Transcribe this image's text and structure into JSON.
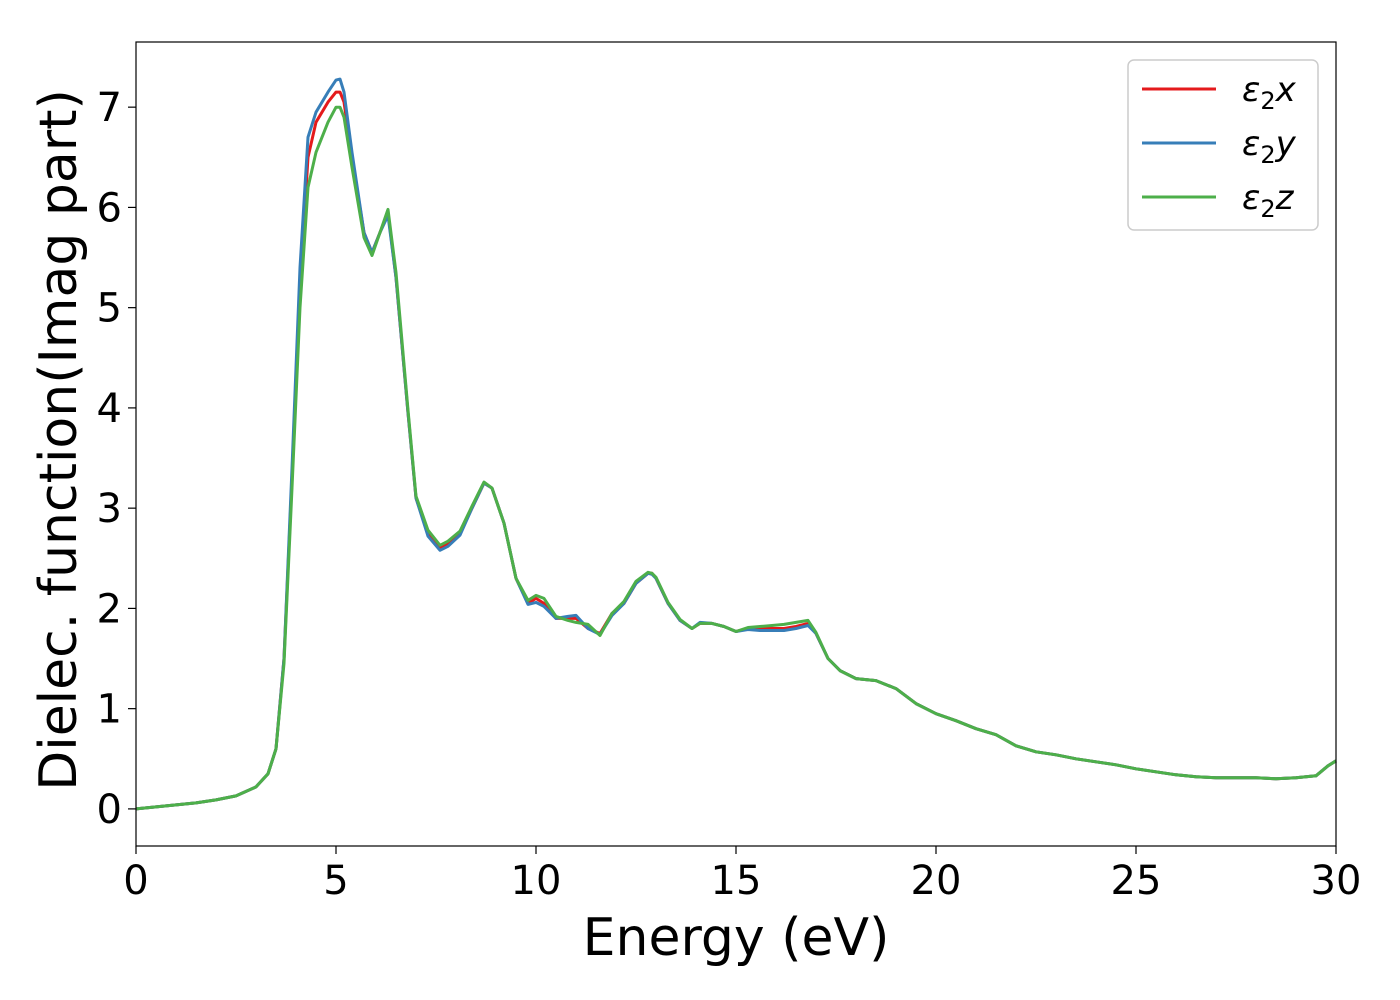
{
  "chart_data": {
    "type": "line",
    "xlabel": "Energy (eV)",
    "ylabel": "Dielec. function(Imag part)",
    "xlim": [
      0,
      30
    ],
    "ylim": [
      -0.37,
      7.65
    ],
    "xticks": [
      0,
      5,
      10,
      15,
      20,
      25,
      30
    ],
    "yticks": [
      0,
      1,
      2,
      3,
      4,
      5,
      6,
      7
    ],
    "grid": false,
    "legend_position": "top-right",
    "series": [
      {
        "name": "ε2x",
        "legend": {
          "sym": "ε",
          "sub": "2",
          "var": "x"
        },
        "color": "#e41a1c",
        "x": [
          0,
          0.5,
          1,
          1.5,
          2,
          2.5,
          3,
          3.3,
          3.5,
          3.7,
          3.9,
          4.1,
          4.3,
          4.5,
          4.8,
          5.0,
          5.1,
          5.2,
          5.4,
          5.7,
          5.9,
          6.1,
          6.3,
          6.5,
          6.8,
          7.0,
          7.3,
          7.6,
          7.8,
          8.1,
          8.4,
          8.7,
          8.9,
          9.2,
          9.5,
          9.8,
          10.0,
          10.2,
          10.5,
          10.8,
          11.0,
          11.3,
          11.6,
          11.9,
          12.2,
          12.5,
          12.8,
          12.9,
          13.0,
          13.3,
          13.6,
          13.9,
          14.1,
          14.4,
          14.7,
          15.0,
          15.3,
          15.6,
          15.9,
          16.2,
          16.5,
          16.8,
          17.0,
          17.3,
          17.6,
          18.0,
          18.5,
          19.0,
          19.5,
          20.0,
          20.5,
          21.0,
          21.5,
          22.0,
          22.5,
          23.0,
          23.5,
          24.0,
          24.5,
          25.0,
          25.5,
          26.0,
          26.5,
          27.0,
          27.5,
          28.0,
          28.5,
          29.0,
          29.5,
          29.8,
          30.0
        ],
        "y": [
          0,
          0.02,
          0.04,
          0.06,
          0.09,
          0.13,
          0.22,
          0.35,
          0.6,
          1.5,
          3.3,
          5.2,
          6.5,
          6.85,
          7.05,
          7.15,
          7.15,
          7.05,
          6.5,
          5.75,
          5.55,
          5.75,
          5.95,
          5.3,
          3.95,
          3.1,
          2.75,
          2.6,
          2.65,
          2.75,
          3.0,
          3.25,
          3.2,
          2.85,
          2.3,
          2.05,
          2.1,
          2.05,
          1.9,
          1.9,
          1.9,
          1.8,
          1.75,
          1.95,
          2.05,
          2.25,
          2.35,
          2.35,
          2.3,
          2.05,
          1.88,
          1.8,
          1.85,
          1.85,
          1.82,
          1.77,
          1.8,
          1.8,
          1.8,
          1.8,
          1.82,
          1.85,
          1.75,
          1.5,
          1.38,
          1.3,
          1.28,
          1.2,
          1.05,
          0.95,
          0.88,
          0.8,
          0.74,
          0.63,
          0.57,
          0.54,
          0.5,
          0.47,
          0.44,
          0.4,
          0.37,
          0.34,
          0.32,
          0.31,
          0.31,
          0.31,
          0.3,
          0.31,
          0.33,
          0.43,
          0.48
        ]
      },
      {
        "name": "ε2y",
        "legend": {
          "sym": "ε",
          "sub": "2",
          "var": "y"
        },
        "color": "#377eb8",
        "x": [
          0,
          0.5,
          1,
          1.5,
          2,
          2.5,
          3,
          3.3,
          3.5,
          3.7,
          3.9,
          4.1,
          4.3,
          4.5,
          4.8,
          5.0,
          5.1,
          5.2,
          5.4,
          5.7,
          5.9,
          6.1,
          6.3,
          6.5,
          6.8,
          7.0,
          7.3,
          7.6,
          7.8,
          8.1,
          8.4,
          8.7,
          8.9,
          9.2,
          9.5,
          9.8,
          10.0,
          10.2,
          10.5,
          10.8,
          11.0,
          11.3,
          11.6,
          11.9,
          12.2,
          12.5,
          12.8,
          12.9,
          13.0,
          13.3,
          13.6,
          13.9,
          14.1,
          14.4,
          14.7,
          15.0,
          15.3,
          15.6,
          15.9,
          16.2,
          16.5,
          16.8,
          17.0,
          17.3,
          17.6,
          18.0,
          18.5,
          19.0,
          19.5,
          20.0,
          20.5,
          21.0,
          21.5,
          22.0,
          22.5,
          23.0,
          23.5,
          24.0,
          24.5,
          25.0,
          25.5,
          26.0,
          26.5,
          27.0,
          27.5,
          28.0,
          28.5,
          29.0,
          29.5,
          29.8,
          30.0
        ],
        "y": [
          0,
          0.02,
          0.04,
          0.06,
          0.09,
          0.13,
          0.22,
          0.35,
          0.6,
          1.5,
          3.4,
          5.4,
          6.7,
          6.95,
          7.15,
          7.27,
          7.28,
          7.15,
          6.55,
          5.75,
          5.55,
          5.75,
          5.92,
          5.3,
          3.95,
          3.1,
          2.72,
          2.58,
          2.62,
          2.73,
          3.0,
          3.25,
          3.2,
          2.85,
          2.3,
          2.04,
          2.06,
          2.02,
          1.9,
          1.92,
          1.93,
          1.8,
          1.74,
          1.93,
          2.05,
          2.25,
          2.35,
          2.34,
          2.3,
          2.05,
          1.88,
          1.8,
          1.86,
          1.85,
          1.82,
          1.77,
          1.79,
          1.78,
          1.78,
          1.78,
          1.8,
          1.83,
          1.75,
          1.5,
          1.38,
          1.3,
          1.28,
          1.2,
          1.05,
          0.95,
          0.88,
          0.8,
          0.74,
          0.63,
          0.57,
          0.54,
          0.5,
          0.47,
          0.44,
          0.4,
          0.37,
          0.34,
          0.32,
          0.31,
          0.31,
          0.31,
          0.3,
          0.31,
          0.33,
          0.43,
          0.48
        ]
      },
      {
        "name": "ε2z",
        "legend": {
          "sym": "ε",
          "sub": "2",
          "var": "z"
        },
        "color": "#4daf4a",
        "x": [
          0,
          0.5,
          1,
          1.5,
          2,
          2.5,
          3,
          3.3,
          3.5,
          3.7,
          3.9,
          4.1,
          4.3,
          4.5,
          4.8,
          5.0,
          5.1,
          5.2,
          5.4,
          5.7,
          5.9,
          6.1,
          6.3,
          6.5,
          6.8,
          7.0,
          7.3,
          7.6,
          7.8,
          8.1,
          8.4,
          8.7,
          8.9,
          9.2,
          9.5,
          9.8,
          10.0,
          10.2,
          10.5,
          10.8,
          11.0,
          11.3,
          11.6,
          11.9,
          12.2,
          12.5,
          12.8,
          12.9,
          13.0,
          13.3,
          13.6,
          13.9,
          14.1,
          14.4,
          14.7,
          15.0,
          15.3,
          15.6,
          15.9,
          16.2,
          16.5,
          16.8,
          17.0,
          17.3,
          17.6,
          18.0,
          18.5,
          19.0,
          19.5,
          20.0,
          20.5,
          21.0,
          21.5,
          22.0,
          22.5,
          23.0,
          23.5,
          24.0,
          24.5,
          25.0,
          25.5,
          26.0,
          26.5,
          27.0,
          27.5,
          28.0,
          28.5,
          29.0,
          29.5,
          29.8,
          30.0
        ],
        "y": [
          0,
          0.02,
          0.04,
          0.06,
          0.09,
          0.13,
          0.22,
          0.35,
          0.6,
          1.45,
          3.2,
          5.0,
          6.2,
          6.55,
          6.85,
          7.0,
          7.0,
          6.9,
          6.4,
          5.7,
          5.52,
          5.75,
          5.98,
          5.35,
          3.98,
          3.12,
          2.78,
          2.63,
          2.67,
          2.77,
          3.02,
          3.26,
          3.2,
          2.85,
          2.3,
          2.08,
          2.13,
          2.1,
          1.92,
          1.88,
          1.86,
          1.84,
          1.73,
          1.95,
          2.07,
          2.27,
          2.36,
          2.35,
          2.31,
          2.06,
          1.89,
          1.8,
          1.85,
          1.85,
          1.82,
          1.77,
          1.81,
          1.82,
          1.83,
          1.84,
          1.86,
          1.88,
          1.76,
          1.5,
          1.38,
          1.3,
          1.28,
          1.2,
          1.05,
          0.95,
          0.88,
          0.8,
          0.74,
          0.63,
          0.57,
          0.54,
          0.5,
          0.47,
          0.44,
          0.4,
          0.37,
          0.34,
          0.32,
          0.31,
          0.31,
          0.31,
          0.3,
          0.31,
          0.33,
          0.43,
          0.48
        ]
      }
    ]
  }
}
